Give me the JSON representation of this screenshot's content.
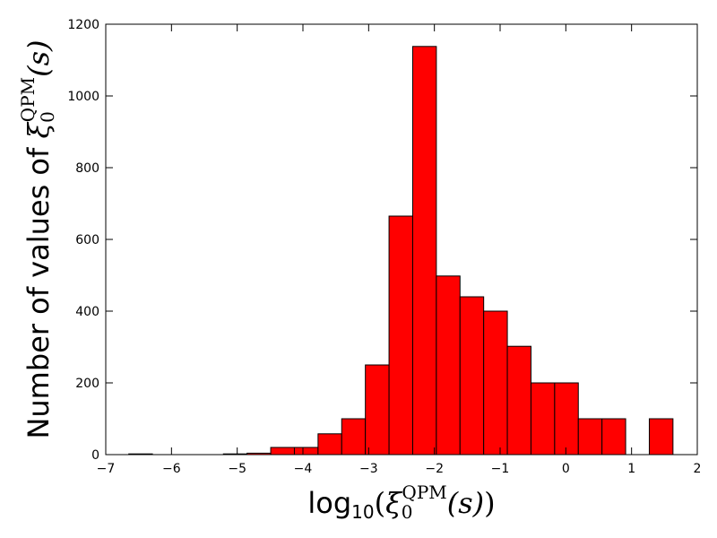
{
  "chart_data": {
    "type": "bar",
    "subtype": "histogram",
    "title": "",
    "xlabel": {
      "prefix": "log",
      "sub10": "10",
      "open": "(",
      "xi": "ξ",
      "sub0": "0",
      "sup": "QPM",
      "arg": "(s)",
      "close": ")"
    },
    "ylabel": {
      "text": "Number of values of ",
      "xi": "ξ",
      "sub0": "0",
      "sup": "QPM",
      "arg": "(s)"
    },
    "xlim": [
      -7,
      2
    ],
    "ylim": [
      0,
      1200
    ],
    "xticks": [
      -7,
      -6,
      -5,
      -4,
      -3,
      -2,
      -1,
      0,
      1,
      2
    ],
    "xtick_labels": [
      "−7",
      "−6",
      "−5",
      "−4",
      "−3",
      "−2",
      "−1",
      "0",
      "1",
      "2"
    ],
    "yticks": [
      0,
      200,
      400,
      600,
      800,
      1000,
      1200
    ],
    "ytick_labels": [
      "0",
      "200",
      "400",
      "600",
      "800",
      "1000",
      "1200"
    ],
    "bar_color": "#ff0000",
    "edge_color": "#000000",
    "bins": [
      {
        "x0": -6.65,
        "x1": -6.29,
        "count": 2
      },
      {
        "x0": -6.29,
        "x1": -5.93,
        "count": 0
      },
      {
        "x0": -5.93,
        "x1": -5.57,
        "count": 0
      },
      {
        "x0": -5.57,
        "x1": -5.21,
        "count": 0
      },
      {
        "x0": -5.21,
        "x1": -4.85,
        "count": 2
      },
      {
        "x0": -4.85,
        "x1": -4.49,
        "count": 4
      },
      {
        "x0": -4.49,
        "x1": -4.13,
        "count": 20
      },
      {
        "x0": -4.13,
        "x1": -3.77,
        "count": 20
      },
      {
        "x0": -3.77,
        "x1": -3.41,
        "count": 58
      },
      {
        "x0": -3.41,
        "x1": -3.05,
        "count": 100
      },
      {
        "x0": -3.05,
        "x1": -2.69,
        "count": 250
      },
      {
        "x0": -2.69,
        "x1": -2.33,
        "count": 665
      },
      {
        "x0": -2.33,
        "x1": -1.97,
        "count": 1138
      },
      {
        "x0": -1.97,
        "x1": -1.61,
        "count": 498
      },
      {
        "x0": -1.61,
        "x1": -1.25,
        "count": 440
      },
      {
        "x0": -1.25,
        "x1": -0.89,
        "count": 400
      },
      {
        "x0": -0.89,
        "x1": -0.53,
        "count": 302
      },
      {
        "x0": -0.53,
        "x1": -0.17,
        "count": 200
      },
      {
        "x0": -0.17,
        "x1": 0.19,
        "count": 200
      },
      {
        "x0": 0.19,
        "x1": 0.55,
        "count": 100
      },
      {
        "x0": 0.55,
        "x1": 0.91,
        "count": 100
      },
      {
        "x0": 0.91,
        "x1": 1.27,
        "count": 0
      },
      {
        "x0": 1.27,
        "x1": 1.63,
        "count": 100
      }
    ],
    "grid": false,
    "legend": "none"
  }
}
